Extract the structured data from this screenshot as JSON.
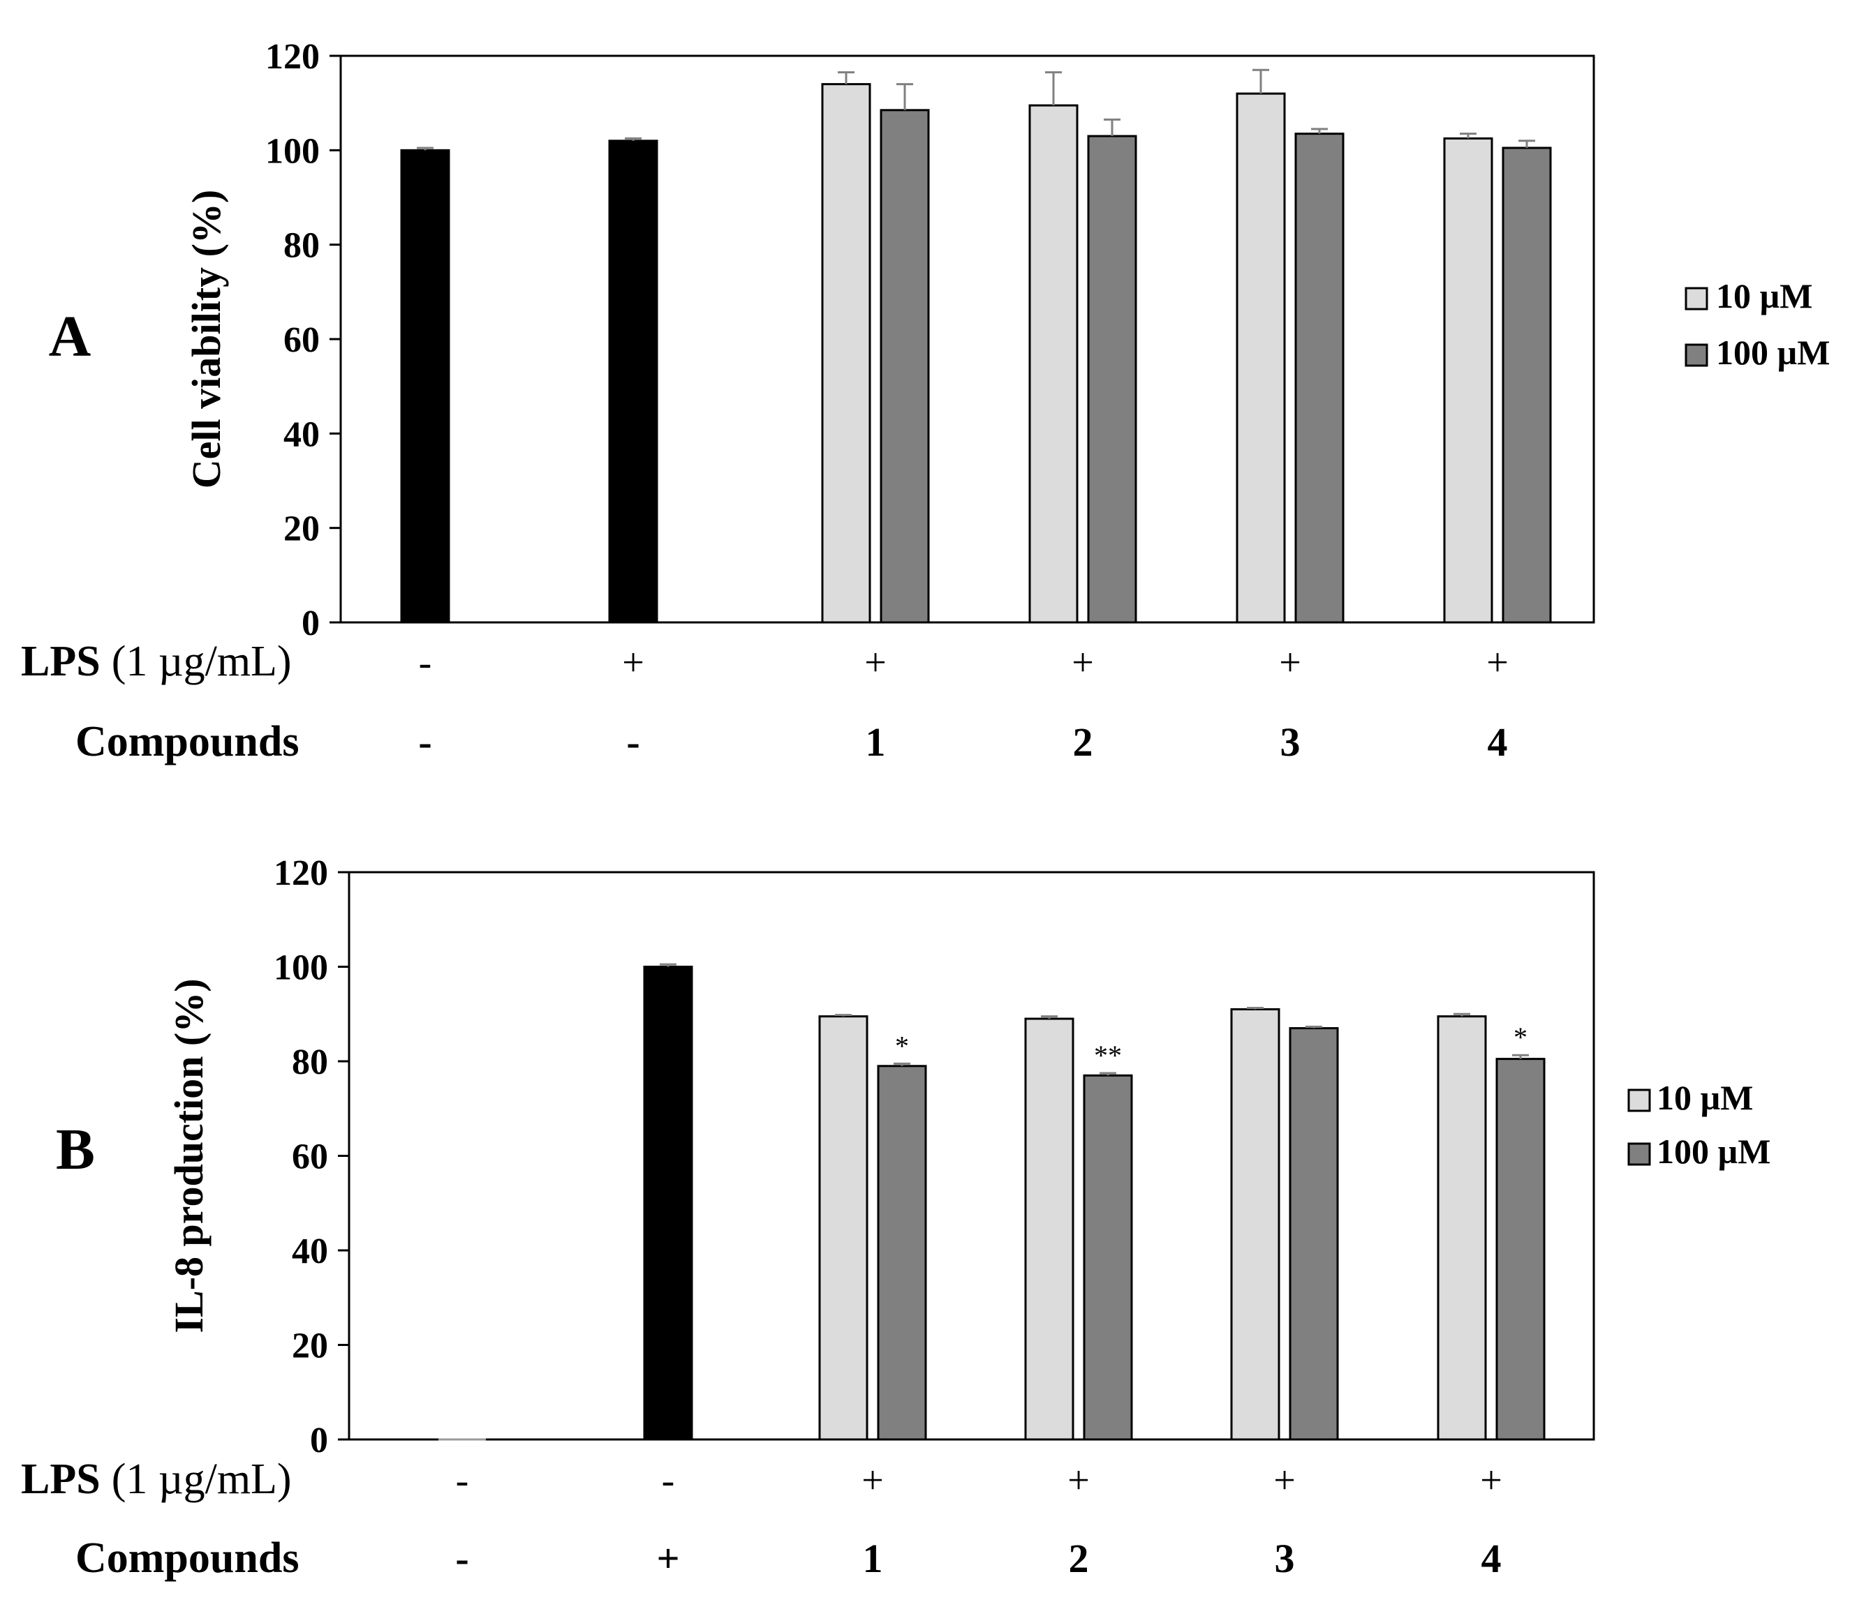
{
  "chart_data": [
    {
      "type": "bar",
      "panel_label": "A",
      "ylabel": "Cell viability (%)",
      "ylim": [
        0,
        120
      ],
      "yticks": [
        0,
        20,
        40,
        60,
        80,
        100,
        120
      ],
      "row_labels": {
        "lps_bold": "LPS",
        "lps_unit": "(1 µg/mL)",
        "compounds": "Compounds"
      },
      "groups": [
        {
          "lps": "-",
          "compound": "-",
          "bars": [
            {
              "series": "control",
              "value": 100,
              "error": 0.5
            }
          ]
        },
        {
          "lps": "+",
          "compound": "-",
          "bars": [
            {
              "series": "control",
              "value": 102,
              "error": 0.5
            }
          ]
        },
        {
          "lps": "+",
          "compound": "1",
          "bars": [
            {
              "series": "10uM",
              "value": 114,
              "error": 2.5
            },
            {
              "series": "100uM",
              "value": 108.5,
              "error": 5.5
            }
          ]
        },
        {
          "lps": "+",
          "compound": "2",
          "bars": [
            {
              "series": "10uM",
              "value": 109.5,
              "error": 7
            },
            {
              "series": "100uM",
              "value": 103,
              "error": 3.5
            }
          ]
        },
        {
          "lps": "+",
          "compound": "3",
          "bars": [
            {
              "series": "10uM",
              "value": 112,
              "error": 5
            },
            {
              "series": "100uM",
              "value": 103.5,
              "error": 1
            }
          ]
        },
        {
          "lps": "+",
          "compound": "4",
          "bars": [
            {
              "series": "10uM",
              "value": 102.5,
              "error": 1
            },
            {
              "series": "100uM",
              "value": 100.5,
              "error": 1.5
            }
          ]
        }
      ],
      "legend": [
        {
          "label": "10 µM",
          "color": "#dcdcdc"
        },
        {
          "label": "100 µM",
          "color": "#808080"
        }
      ]
    },
    {
      "type": "bar",
      "panel_label": "B",
      "ylabel": "IL-8 production (%)",
      "ylim": [
        0,
        120
      ],
      "yticks": [
        0,
        20,
        40,
        60,
        80,
        100,
        120
      ],
      "row_labels": {
        "lps_bold": "LPS",
        "lps_unit": "(1 µg/mL)",
        "compounds": "Compounds"
      },
      "groups": [
        {
          "lps": "-",
          "compound": "-",
          "bars": [
            {
              "series": "control",
              "value": 0,
              "error": 0
            }
          ]
        },
        {
          "lps": "-",
          "compound": "+",
          "bars": [
            {
              "series": "control",
              "value": 100,
              "error": 0.5
            }
          ]
        },
        {
          "lps": "+",
          "compound": "1",
          "bars": [
            {
              "series": "10uM",
              "value": 89.5,
              "error": 0.3
            },
            {
              "series": "100uM",
              "value": 79,
              "error": 0.5,
              "annotation": "*"
            }
          ]
        },
        {
          "lps": "+",
          "compound": "2",
          "bars": [
            {
              "series": "10uM",
              "value": 89,
              "error": 0.5
            },
            {
              "series": "100uM",
              "value": 77,
              "error": 0.5,
              "annotation": "**"
            }
          ]
        },
        {
          "lps": "+",
          "compound": "3",
          "bars": [
            {
              "series": "10uM",
              "value": 91,
              "error": 0.3
            },
            {
              "series": "100uM",
              "value": 87,
              "error": 0.3
            }
          ]
        },
        {
          "lps": "+",
          "compound": "4",
          "bars": [
            {
              "series": "10uM",
              "value": 89.5,
              "error": 0.5
            },
            {
              "series": "100uM",
              "value": 80.5,
              "error": 0.8,
              "annotation": "*"
            }
          ]
        }
      ],
      "legend": [
        {
          "label": "10 µM",
          "color": "#dcdcdc"
        },
        {
          "label": "100 µM",
          "color": "#808080"
        }
      ]
    }
  ],
  "colors": {
    "control": "#000000",
    "10uM": "#dcdcdc",
    "100uM": "#808080",
    "error_bar": "#808080"
  }
}
